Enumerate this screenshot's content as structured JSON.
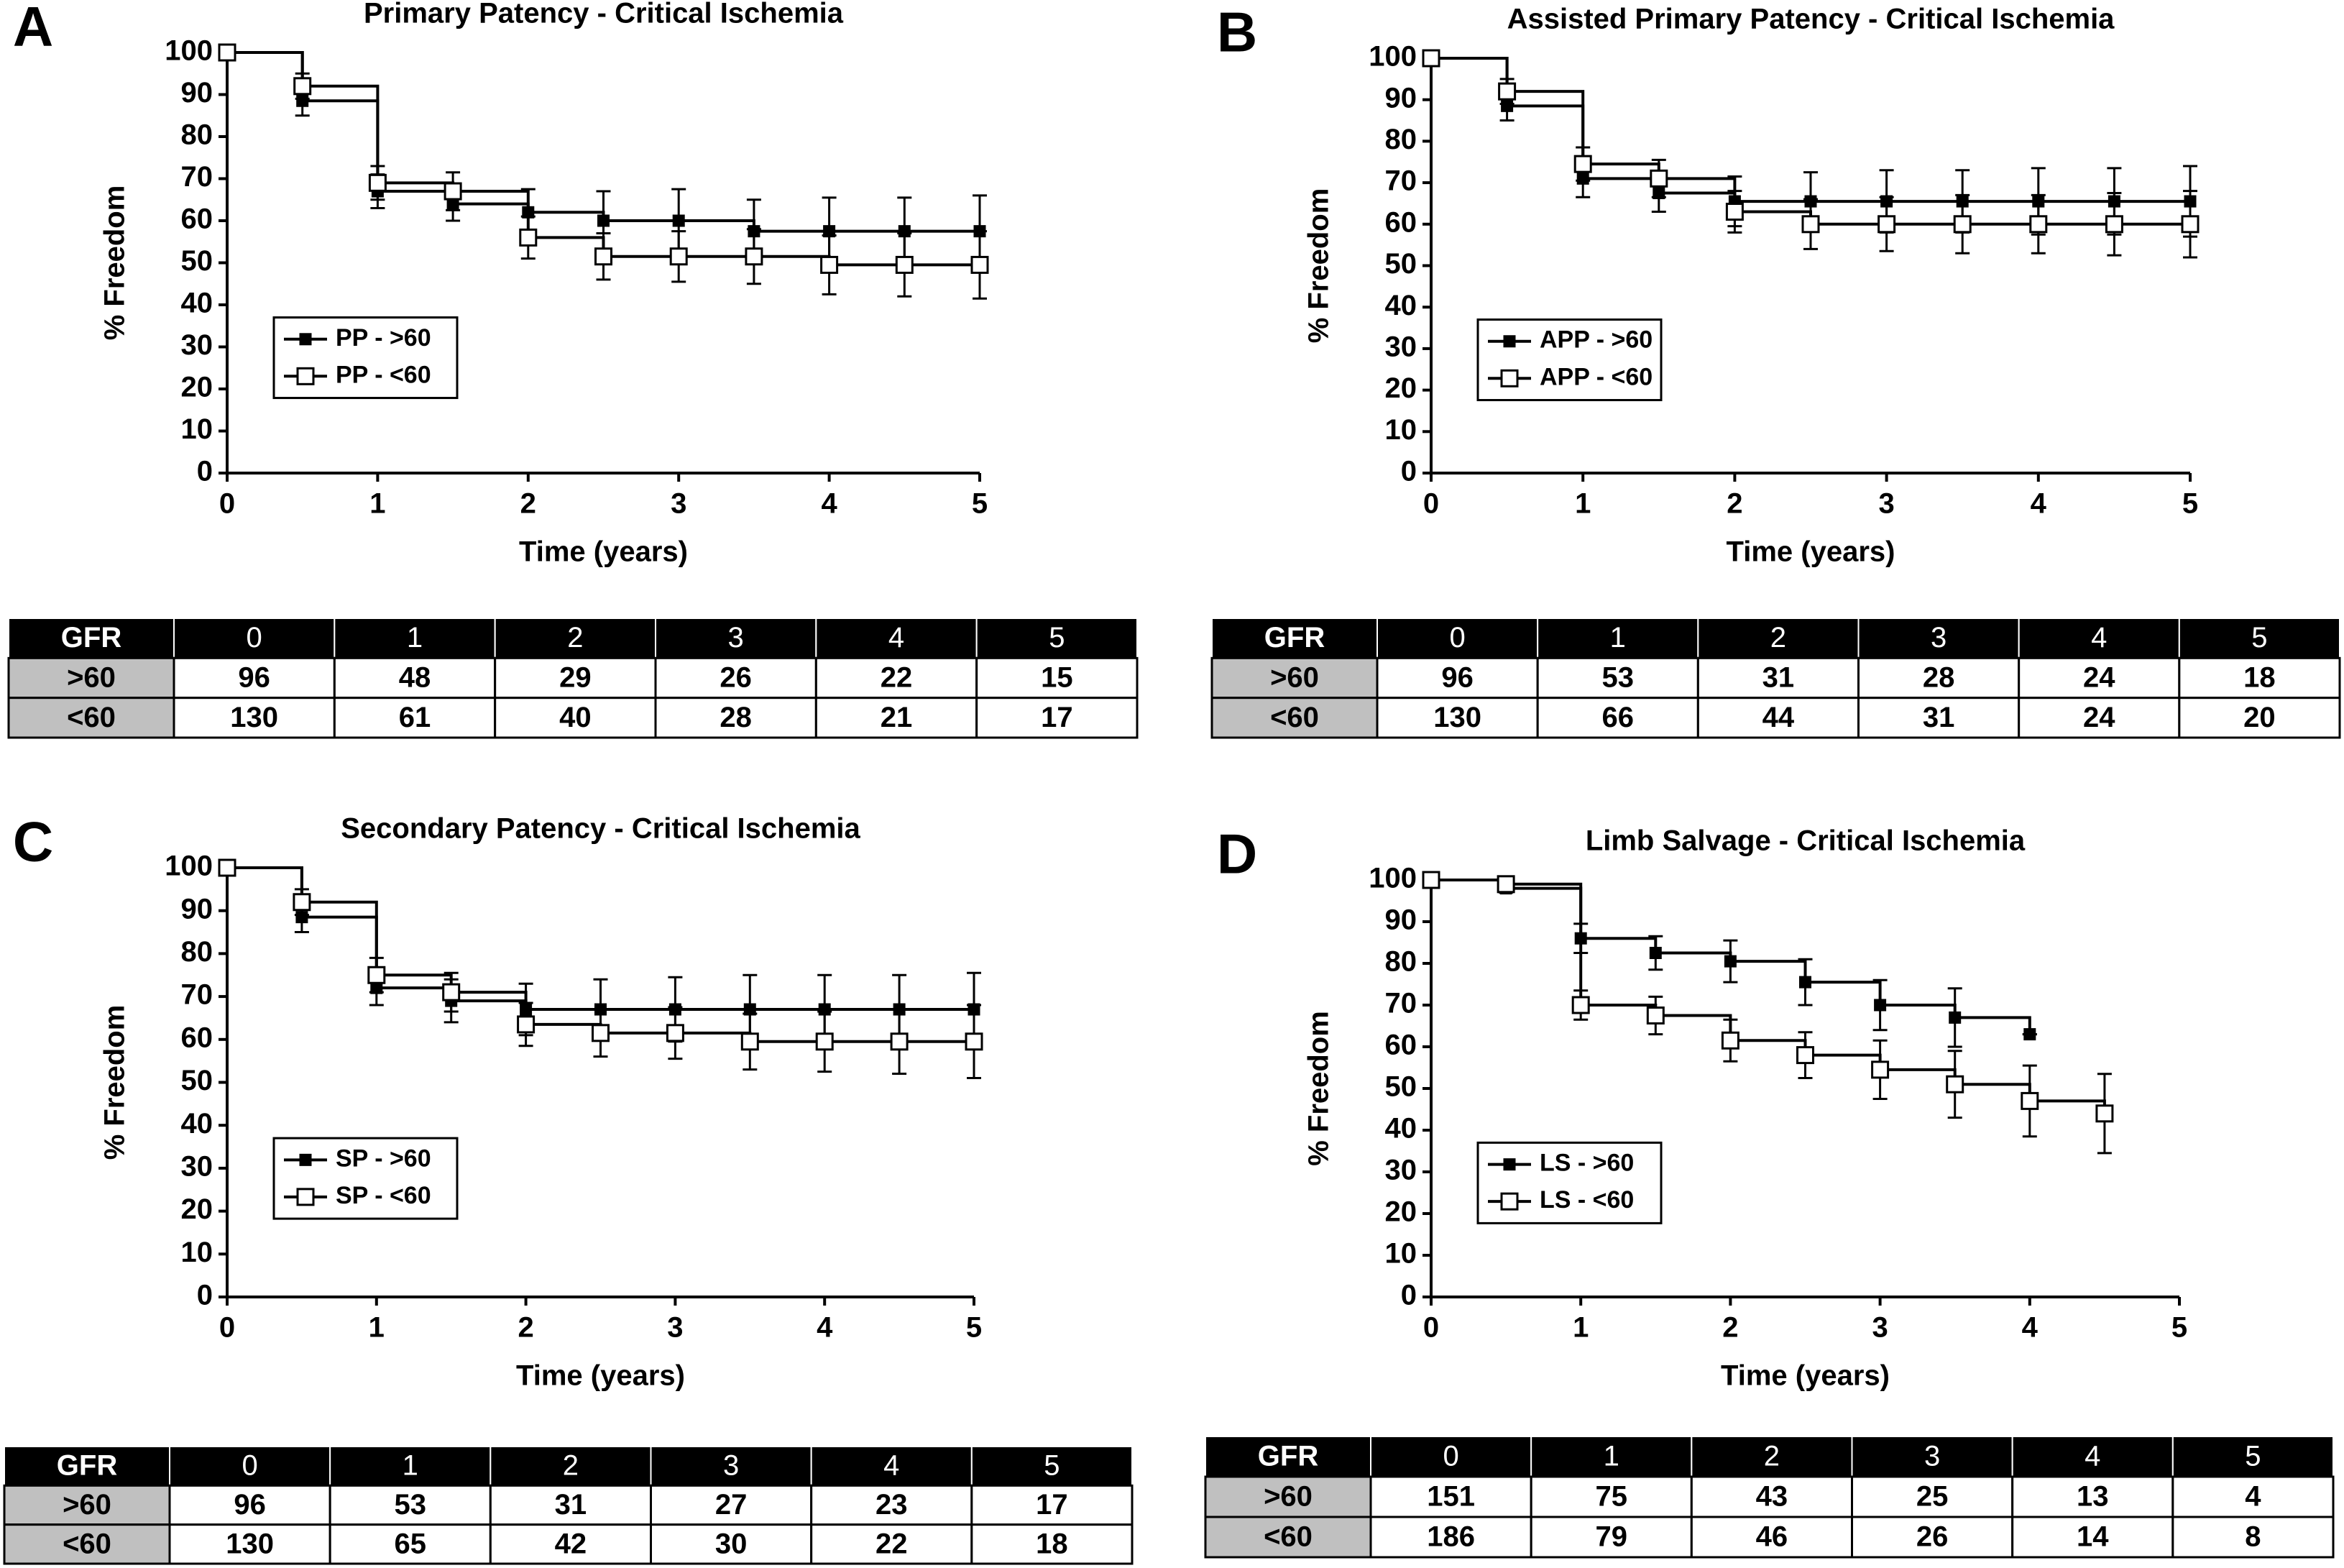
{
  "chart_data": [
    {
      "type": "line",
      "panel": "A",
      "title": "Primary Patency - Critical Ischemia",
      "x_label": "Time (years)",
      "y_label": "% Freedom",
      "x": [
        0,
        0.5,
        1,
        1.5,
        2,
        2.5,
        3,
        3.5,
        4,
        4.5,
        5
      ],
      "xlim": [
        0,
        5
      ],
      "xticks": [
        0,
        1,
        2,
        3,
        4,
        5
      ],
      "ylim": [
        0,
        100
      ],
      "yticks": [
        0,
        10,
        20,
        30,
        40,
        50,
        60,
        70,
        80,
        90,
        100
      ],
      "legend": "lower left",
      "series": [
        {
          "name": "PP - >60",
          "color": "#000000",
          "marker": "filled",
          "values": [
            100,
            88.5,
            67,
            64,
            62,
            60,
            60,
            57.5,
            57.5,
            57.5,
            57.5
          ],
          "errors": [
            0,
            3.5,
            4,
            4,
            5.5,
            7,
            7.5,
            7.5,
            8,
            8,
            8.5
          ]
        },
        {
          "name": "PP - <60",
          "color": "#000000",
          "marker": "open",
          "values": [
            100,
            92,
            69,
            67,
            56,
            51.5,
            51.5,
            51.5,
            49.5,
            49.5,
            49.5
          ],
          "errors": [
            0,
            3,
            4,
            4.5,
            5,
            5.5,
            6,
            6.5,
            7,
            7.5,
            8
          ]
        }
      ],
      "table": {
        "header": [
          "GFR",
          0,
          1,
          2,
          3,
          4,
          5
        ],
        "rows": [
          [
            ">60",
            96,
            48,
            29,
            26,
            22,
            15
          ],
          [
            "<60",
            130,
            61,
            40,
            28,
            21,
            17
          ]
        ]
      }
    },
    {
      "type": "line",
      "panel": "B",
      "title": "Assisted Primary Patency - Critical Ischemia",
      "x_label": "Time (years)",
      "y_label": "% Freedom",
      "x": [
        0,
        0.5,
        1,
        1.5,
        2,
        2.5,
        3,
        3.5,
        4,
        4.5,
        5
      ],
      "xlim": [
        0,
        5
      ],
      "xticks": [
        0,
        1,
        2,
        3,
        4,
        5
      ],
      "ylim": [
        0,
        100
      ],
      "yticks": [
        0,
        10,
        20,
        30,
        40,
        50,
        60,
        70,
        80,
        90,
        100
      ],
      "legend": "lower left",
      "series": [
        {
          "name": "APP - >60",
          "color": "#000000",
          "marker": "filled",
          "values": [
            100,
            88.5,
            71,
            67.5,
            65.5,
            65.5,
            65.5,
            65.5,
            65.5,
            65.5,
            65.5
          ],
          "errors": [
            0,
            3.5,
            4.5,
            4.5,
            6,
            7,
            7.5,
            7.5,
            8,
            8,
            8.5
          ]
        },
        {
          "name": "APP - <60",
          "color": "#000000",
          "marker": "open",
          "values": [
            100,
            92,
            74.5,
            71,
            63,
            60,
            60,
            60,
            60,
            60,
            60
          ],
          "errors": [
            0,
            3,
            4,
            4.5,
            5,
            6,
            6.5,
            7,
            7,
            7.5,
            8
          ]
        }
      ],
      "table": {
        "header": [
          "GFR",
          0,
          1,
          2,
          3,
          4,
          5
        ],
        "rows": [
          [
            ">60",
            96,
            53,
            31,
            28,
            24,
            18
          ],
          [
            "<60",
            130,
            66,
            44,
            31,
            24,
            20
          ]
        ]
      }
    },
    {
      "type": "line",
      "panel": "C",
      "title": "Secondary Patency - Critical Ischemia",
      "x_label": "Time (years)",
      "y_label": "% Freedom",
      "x": [
        0,
        0.5,
        1,
        1.5,
        2,
        2.5,
        3,
        3.5,
        4,
        4.5,
        5
      ],
      "xlim": [
        0,
        5
      ],
      "xticks": [
        0,
        1,
        2,
        3,
        4,
        5
      ],
      "ylim": [
        0,
        100
      ],
      "yticks": [
        0,
        10,
        20,
        30,
        40,
        50,
        60,
        70,
        80,
        90,
        100
      ],
      "legend": "lower left",
      "series": [
        {
          "name": "SP - >60",
          "color": "#000000",
          "marker": "filled",
          "values": [
            100,
            88.5,
            72,
            69,
            67,
            67,
            67,
            67,
            67,
            67,
            67
          ],
          "errors": [
            0,
            3.5,
            4,
            5,
            6,
            7,
            7.5,
            8,
            8,
            8,
            8.5
          ]
        },
        {
          "name": "SP - <60",
          "color": "#000000",
          "marker": "open",
          "values": [
            100,
            92,
            75,
            71,
            63.5,
            61.5,
            61.5,
            59.5,
            59.5,
            59.5,
            59.5
          ],
          "errors": [
            0,
            3,
            4,
            4.5,
            5,
            5.5,
            6,
            6.5,
            7,
            7.5,
            8.5
          ]
        }
      ],
      "table": {
        "header": [
          "GFR",
          0,
          1,
          2,
          3,
          4,
          5
        ],
        "rows": [
          [
            ">60",
            96,
            53,
            31,
            27,
            23,
            17
          ],
          [
            "<60",
            130,
            65,
            42,
            30,
            22,
            18
          ]
        ]
      }
    },
    {
      "type": "line",
      "panel": "D",
      "title": "Limb Salvage - Critical Ischemia",
      "x_label": "Time (years)",
      "y_label": "% Freedom",
      "x": [
        0,
        0.5,
        1,
        1.5,
        2,
        2.5,
        3,
        3.5,
        4,
        4.5
      ],
      "xlim": [
        0,
        5
      ],
      "xticks": [
        0,
        1,
        2,
        3,
        4,
        5
      ],
      "ylim": [
        0,
        100
      ],
      "yticks": [
        0,
        10,
        20,
        30,
        40,
        50,
        60,
        70,
        80,
        90,
        100
      ],
      "legend": "lower left",
      "series": [
        {
          "name": "LS - >60",
          "color": "#000000",
          "marker": "filled",
          "values": [
            100,
            98,
            86,
            82.5,
            80.5,
            75.5,
            70,
            67,
            63,
            null
          ],
          "errors": [
            0,
            1,
            3.5,
            4,
            5,
            5.5,
            6,
            7,
            0,
            null
          ]
        },
        {
          "name": "LS - <60",
          "color": "#000000",
          "marker": "open",
          "values": [
            100,
            99,
            70,
            67.5,
            61.5,
            58,
            54.5,
            51,
            47,
            44
          ],
          "errors": [
            0,
            1,
            3.5,
            4.5,
            5,
            5.5,
            7,
            8,
            8.5,
            9.5
          ]
        }
      ],
      "table": {
        "header": [
          "GFR",
          0,
          1,
          2,
          3,
          4,
          5
        ],
        "rows": [
          [
            ">60",
            151,
            75,
            43,
            25,
            13,
            4
          ],
          [
            "<60",
            186,
            79,
            46,
            26,
            14,
            8
          ]
        ]
      }
    }
  ]
}
